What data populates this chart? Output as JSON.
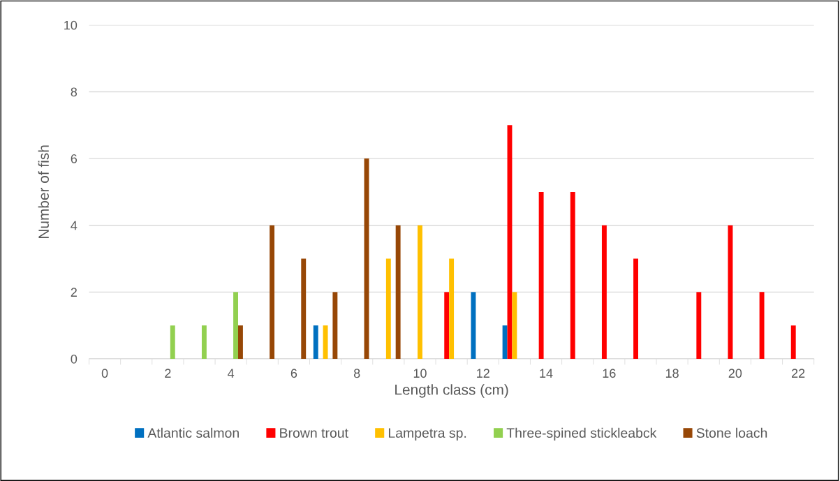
{
  "chart_data": {
    "type": "bar",
    "xlabel": "Length class (cm)",
    "ylabel": "Number of fish",
    "categories": [
      "0",
      null,
      "2",
      null,
      "4",
      null,
      "6",
      null,
      "8",
      null,
      "10",
      null,
      "12",
      null,
      "14",
      null,
      "16",
      null,
      "18",
      null,
      "20",
      null,
      "22"
    ],
    "series": [
      {
        "name": "Atlantic salmon",
        "color": "#0070c0",
        "values": [
          0,
          0,
          0,
          0,
          0,
          0,
          0,
          1,
          0,
          0,
          0,
          0,
          2,
          1,
          0,
          0,
          0,
          0,
          0,
          0,
          0,
          0,
          0
        ]
      },
      {
        "name": "Brown trout",
        "color": "#ff0000",
        "values": [
          0,
          0,
          0,
          0,
          0,
          0,
          0,
          0,
          0,
          0,
          0,
          2,
          0,
          7,
          5,
          5,
          4,
          3,
          0,
          2,
          4,
          2,
          1
        ]
      },
      {
        "name": "Lampetra sp.",
        "color": "#ffc000",
        "values": [
          0,
          0,
          0,
          0,
          0,
          0,
          0,
          1,
          0,
          3,
          4,
          3,
          0,
          2,
          0,
          0,
          0,
          0,
          0,
          0,
          0,
          0,
          0
        ]
      },
      {
        "name": "Three-spined stickleabck",
        "color": "#92d050",
        "values": [
          0,
          0,
          1,
          1,
          2,
          0,
          0,
          0,
          0,
          0,
          0,
          0,
          0,
          0,
          0,
          0,
          0,
          0,
          0,
          0,
          0,
          0,
          0
        ]
      },
      {
        "name": "Stone loach",
        "color": "#974706",
        "values": [
          0,
          0,
          0,
          0,
          1,
          4,
          3,
          2,
          6,
          4,
          0,
          0,
          0,
          0,
          0,
          0,
          0,
          0,
          0,
          0,
          0,
          0,
          0
        ]
      }
    ],
    "ylim": [
      0,
      10
    ],
    "yticks": [
      0,
      2,
      4,
      6,
      8,
      10
    ],
    "grid": "y",
    "legend": "bottom"
  }
}
